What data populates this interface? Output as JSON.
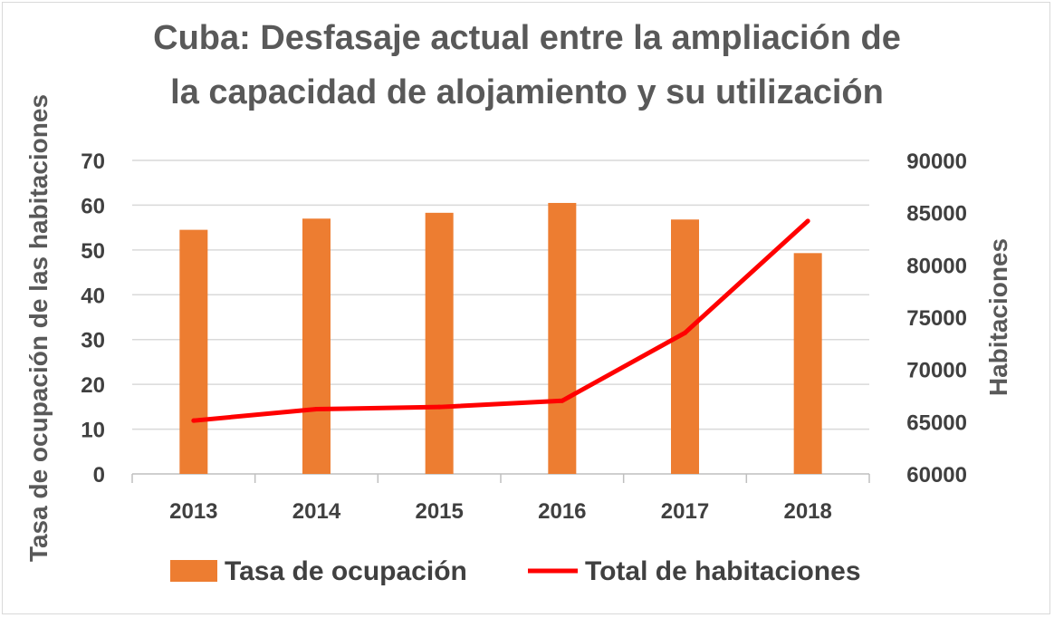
{
  "chart_data": {
    "type": "bar+line",
    "title_line1": "Cuba: Desfasaje actual entre la ampliación de",
    "title_line2": "la capacidad de alojamiento y su utilización",
    "categories": [
      "2013",
      "2014",
      "2015",
      "2016",
      "2017",
      "2018"
    ],
    "y_left": {
      "label": "Tasa de ocupación de las habitaciones",
      "ylim": [
        0,
        70
      ],
      "ticks": [
        "0",
        "10",
        "20",
        "30",
        "40",
        "50",
        "60",
        "70"
      ]
    },
    "y_right": {
      "label": "Habitaciones",
      "ylim": [
        60000,
        90000
      ],
      "ticks": [
        "60000",
        "65000",
        "70000",
        "75000",
        "80000",
        "85000",
        "90000"
      ]
    },
    "series": [
      {
        "name": "Tasa de ocupación",
        "type": "bar",
        "axis": "left",
        "color": "#ed7d31",
        "values": [
          54.5,
          57,
          58.3,
          60.5,
          56.8,
          49.3
        ]
      },
      {
        "name": "Total de habitaciones",
        "type": "line",
        "axis": "right",
        "color": "#ff0000",
        "values": [
          65100,
          66200,
          66400,
          67000,
          73500,
          84200
        ]
      }
    ],
    "grid": true,
    "legend_position": "bottom"
  }
}
